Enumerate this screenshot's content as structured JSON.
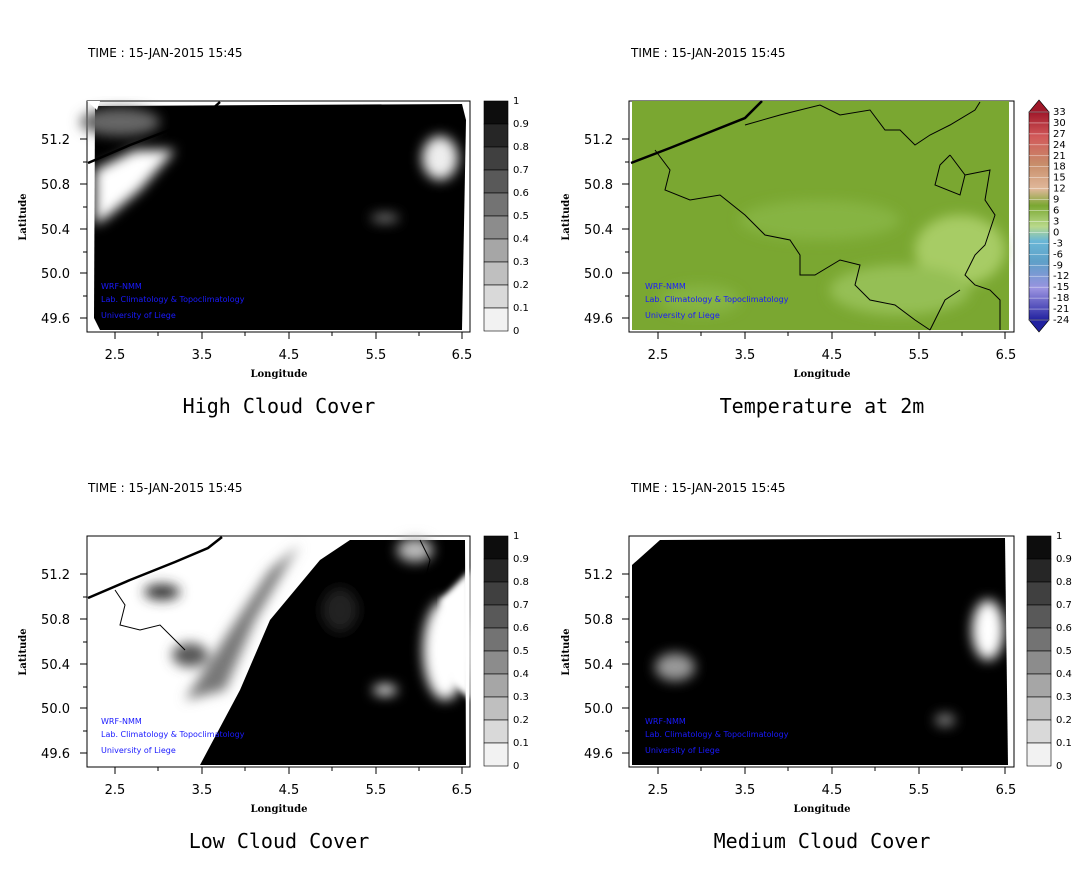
{
  "time_label": "TIME : 15-JAN-2015 15:45",
  "axis": {
    "x_label": "Longitude",
    "y_label": "Latitude",
    "x_ticks": [
      "2.5",
      "3.5",
      "4.5",
      "5.5",
      "6.5"
    ],
    "y_ticks": [
      "51.2",
      "50.8",
      "50.4",
      "50.0",
      "49.6"
    ]
  },
  "credits": [
    "WRF-NMM",
    "Lab. Climatology & Topoclimatology",
    "University of Liege"
  ],
  "colorbars": {
    "cloud": [
      "1",
      "0.9",
      "0.8",
      "0.7",
      "0.6",
      "0.5",
      "0.4",
      "0.3",
      "0.2",
      "0.1",
      "0"
    ],
    "temp": [
      "33",
      "30",
      "27",
      "24",
      "21",
      "18",
      "15",
      "12",
      "9",
      "6",
      "3",
      "0",
      "-3",
      "-6",
      "-9",
      "-12",
      "-15",
      "-18",
      "-21",
      "-24"
    ]
  },
  "panels": [
    {
      "id": "high-cloud",
      "caption": "High Cloud Cover",
      "colorbar": "cloud"
    },
    {
      "id": "temperature",
      "caption": "Temperature at 2m",
      "colorbar": "temp"
    },
    {
      "id": "low-cloud",
      "caption": "Low Cloud Cover",
      "colorbar": "cloud"
    },
    {
      "id": "medium-cloud",
      "caption": "Medium Cloud Cover",
      "colorbar": "cloud"
    }
  ],
  "colors": {
    "cloud_dark": "#000000",
    "cloud_clear": "#ffffff",
    "temp_green": "#7aa731",
    "credit_blue": "#1a1aff"
  }
}
